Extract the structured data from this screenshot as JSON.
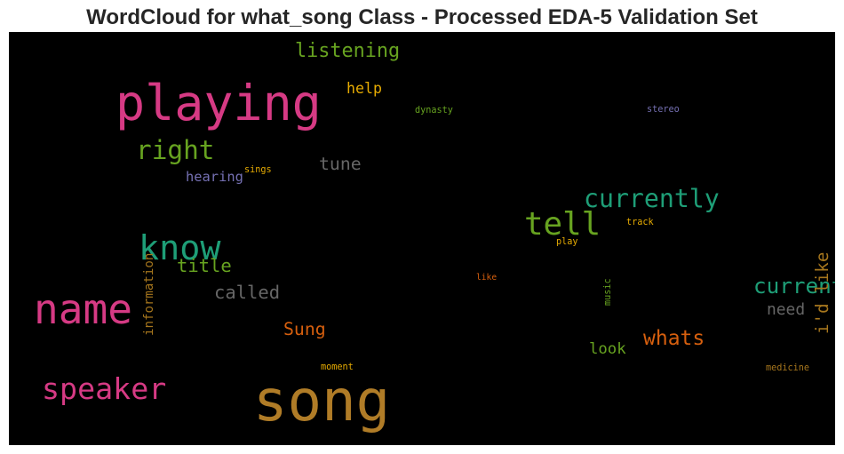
{
  "chart_data": {
    "type": "wordcloud",
    "title": "WordCloud for what_song Class - Processed EDA-5 Validation Set",
    "background": "#000000",
    "words": [
      {
        "text": "song",
        "color": "#b07c27",
        "weight": 1.0,
        "orientation": "horizontal"
      },
      {
        "text": "playing",
        "color": "#d63a84",
        "weight": 0.86,
        "orientation": "horizontal"
      },
      {
        "text": "name",
        "color": "#d63a84",
        "weight": 0.72,
        "orientation": "horizontal"
      },
      {
        "text": "know",
        "color": "#1e9e77",
        "weight": 0.6,
        "orientation": "horizontal"
      },
      {
        "text": "tell",
        "color": "#67a320",
        "weight": 0.56,
        "orientation": "horizontal"
      },
      {
        "text": "speaker",
        "color": "#d63a84",
        "weight": 0.52,
        "orientation": "horizontal"
      },
      {
        "text": "right",
        "color": "#67a320",
        "weight": 0.46,
        "orientation": "horizontal"
      },
      {
        "text": "currently",
        "color": "#1e9e77",
        "weight": 0.44,
        "orientation": "horizontal"
      },
      {
        "text": "current",
        "color": "#1e9e77",
        "weight": 0.38,
        "orientation": "horizontal"
      },
      {
        "text": "whats",
        "color": "#d65f0e",
        "weight": 0.36,
        "orientation": "horizontal"
      },
      {
        "text": "listening",
        "color": "#67a320",
        "weight": 0.34,
        "orientation": "horizontal"
      },
      {
        "text": "called",
        "color": "#666666",
        "weight": 0.32,
        "orientation": "horizontal"
      },
      {
        "text": "title",
        "color": "#67a320",
        "weight": 0.32,
        "orientation": "horizontal"
      },
      {
        "text": "tune",
        "color": "#666666",
        "weight": 0.31,
        "orientation": "horizontal"
      },
      {
        "text": "Sung",
        "color": "#d65f0e",
        "weight": 0.31,
        "orientation": "horizontal"
      },
      {
        "text": "i'd like",
        "color": "#a6761d",
        "weight": 0.3,
        "orientation": "vertical"
      },
      {
        "text": "need",
        "color": "#666666",
        "weight": 0.28,
        "orientation": "horizontal"
      },
      {
        "text": "look",
        "color": "#67a320",
        "weight": 0.27,
        "orientation": "horizontal"
      },
      {
        "text": "help",
        "color": "#e6ab02",
        "weight": 0.26,
        "orientation": "horizontal"
      },
      {
        "text": "hearing",
        "color": "#7570b3",
        "weight": 0.24,
        "orientation": "horizontal"
      },
      {
        "text": "information",
        "color": "#a6761d",
        "weight": 0.22,
        "orientation": "vertical"
      },
      {
        "text": "music",
        "color": "#67a320",
        "weight": 0.16,
        "orientation": "vertical"
      },
      {
        "text": "track",
        "color": "#e6ab02",
        "weight": 0.16,
        "orientation": "horizontal"
      },
      {
        "text": "play",
        "color": "#e6ab02",
        "weight": 0.16,
        "orientation": "horizontal"
      },
      {
        "text": "sings",
        "color": "#e6ab02",
        "weight": 0.16,
        "orientation": "horizontal"
      },
      {
        "text": "dynasty",
        "color": "#67a320",
        "weight": 0.16,
        "orientation": "horizontal"
      },
      {
        "text": "stereo",
        "color": "#7570b3",
        "weight": 0.16,
        "orientation": "horizontal"
      },
      {
        "text": "medicine",
        "color": "#a6761d",
        "weight": 0.16,
        "orientation": "horizontal"
      },
      {
        "text": "moment",
        "color": "#e6ab02",
        "weight": 0.16,
        "orientation": "horizontal"
      },
      {
        "text": "like",
        "color": "#d65f0e",
        "weight": 0.15,
        "orientation": "horizontal"
      }
    ]
  }
}
